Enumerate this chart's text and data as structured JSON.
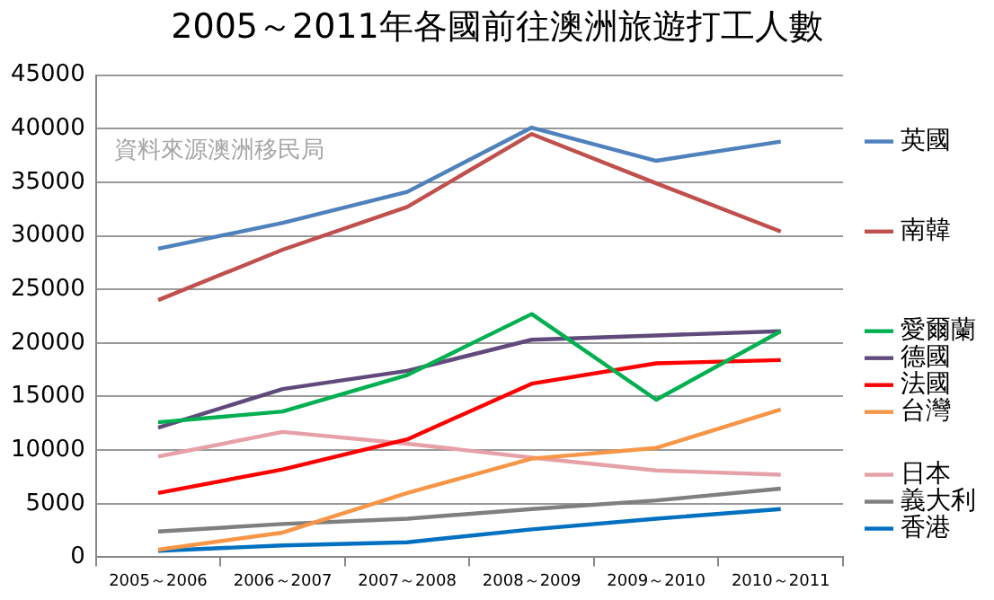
{
  "chart_data": {
    "type": "line",
    "title": "2005～2011年各國前往澳洲旅遊打工人數",
    "annotations": [
      "資料來源澳洲移民局"
    ],
    "categories": [
      "2005～2006",
      "2006～2007",
      "2007～2008",
      "2008～2009",
      "2009～2010",
      "2010～2011"
    ],
    "ylim": [
      0,
      45000
    ],
    "yticks": [
      0,
      5000,
      10000,
      15000,
      20000,
      25000,
      30000,
      35000,
      40000,
      45000
    ],
    "grid": "y",
    "legend": "right",
    "marker": "none",
    "series": [
      {
        "name": "英國",
        "color": "#4f81bd",
        "values": [
          28800,
          31200,
          34100,
          40100,
          37000,
          38800
        ]
      },
      {
        "name": "南韓",
        "color": "#c0504d",
        "values": [
          24000,
          28700,
          32700,
          39500,
          34900,
          30400
        ]
      },
      {
        "name": "愛爾蘭",
        "color": "#00b050",
        "values": [
          12600,
          13600,
          17000,
          22700,
          14700,
          21100
        ]
      },
      {
        "name": "德國",
        "color": "#604a7b",
        "values": [
          12100,
          15700,
          17400,
          20300,
          20700,
          21100
        ]
      },
      {
        "name": "法國",
        "color": "#ff0000",
        "values": [
          6000,
          8200,
          11000,
          16200,
          18100,
          18400
        ]
      },
      {
        "name": "台灣",
        "color": "#f79646",
        "values": [
          700,
          2300,
          6000,
          9200,
          10200,
          13800
        ]
      },
      {
        "name": "日本",
        "color": "#e6a0a8",
        "values": [
          9400,
          11700,
          10600,
          9300,
          8100,
          7700
        ]
      },
      {
        "name": "義大利",
        "color": "#7f7f7f",
        "values": [
          2400,
          3100,
          3600,
          4500,
          5300,
          6400
        ]
      },
      {
        "name": "香港",
        "color": "#0070c0",
        "values": [
          600,
          1100,
          1400,
          2600,
          3600,
          4500
        ]
      }
    ]
  }
}
